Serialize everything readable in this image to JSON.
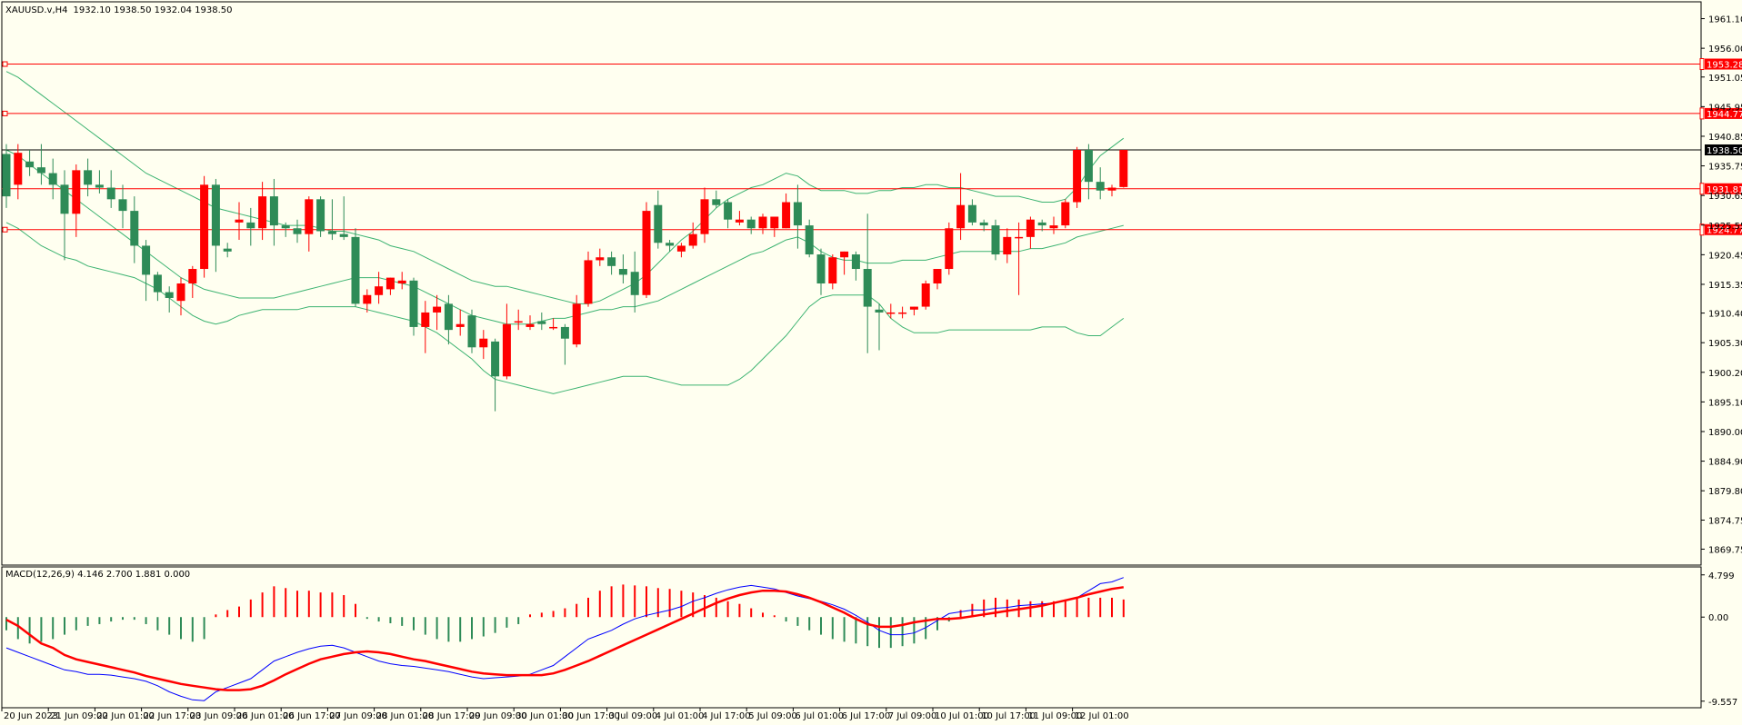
{
  "header": {
    "symbol": "XAUUSD.v,H4",
    "ohlc": "1932.10 1938.50 1932.04 1938.50"
  },
  "macd_header": {
    "label": "MACD(12,26,9) 4.146 2.700 1.881 0.000"
  },
  "colors": {
    "background": "#FFFFF0",
    "bull": "#2E8B57",
    "bear": "#FF0000",
    "bands": "#3CB371",
    "levels": "#FF0000",
    "current_line": "#000000",
    "macd_main": "#0000FF",
    "macd_signal": "#FF0000"
  },
  "chart_data": [
    {
      "type": "candlestick",
      "title": "",
      "ylim": [
        1867,
        1964
      ],
      "y_ticks": [
        "1961.10",
        "1956.00",
        "1951.05",
        "1945.95",
        "1940.85",
        "1935.75",
        "1930.65",
        "1925.55",
        "1920.45",
        "1915.35",
        "1910.40",
        "1905.30",
        "1900.20",
        "1895.10",
        "1890.00",
        "1884.90",
        "1879.80",
        "1874.75",
        "1869.75"
      ],
      "x_ticks": [
        "20 Jun 2023",
        "21 Jun 09:00",
        "22 Jun 01:00",
        "22 Jun 17:00",
        "23 Jun 09:00",
        "26 Jun 01:00",
        "26 Jun 17:00",
        "27 Jun 09:00",
        "28 Jun 01:00",
        "28 Jun 17:00",
        "29 Jun 09:00",
        "30 Jun 01:00",
        "30 Jun 17:00",
        "3 Jul 09:00",
        "4 Jul 01:00",
        "4 Jul 17:00",
        "5 Jul 09:00",
        "6 Jul 01:00",
        "6 Jul 17:00",
        "7 Jul 09:00",
        "10 Jul 01:00",
        "10 Jul 17:00",
        "11 Jul 09:00",
        "12 Jul 01:00"
      ],
      "candles": [
        [
          1937.8,
          1939.5,
          1928.5,
          1930.5
        ],
        [
          1932.5,
          1939.5,
          1930.0,
          1938.0
        ],
        [
          1936.5,
          1938.5,
          1934.0,
          1935.5
        ],
        [
          1935.5,
          1939.5,
          1932.5,
          1934.5
        ],
        [
          1934.5,
          1937.0,
          1930.0,
          1932.5
        ],
        [
          1932.5,
          1935.0,
          1919.5,
          1927.5
        ],
        [
          1927.5,
          1936.0,
          1923.5,
          1935.0
        ],
        [
          1935.0,
          1937.0,
          1930.5,
          1932.5
        ],
        [
          1932.5,
          1935.0,
          1931.0,
          1932.0
        ],
        [
          1932.0,
          1935.0,
          1928.5,
          1930.0
        ],
        [
          1930.0,
          1932.5,
          1925.0,
          1928.0
        ],
        [
          1928.0,
          1930.5,
          1919.0,
          1922.0
        ],
        [
          1922.0,
          1923.0,
          1912.5,
          1917.0
        ],
        [
          1917.0,
          1917.5,
          1912.5,
          1914.0
        ],
        [
          1914.0,
          1915.0,
          1910.5,
          1913.0
        ],
        [
          1912.5,
          1916.5,
          1910.0,
          1915.5
        ],
        [
          1915.5,
          1918.5,
          1913.0,
          1918.0
        ],
        [
          1918.0,
          1934.0,
          1916.5,
          1932.5
        ],
        [
          1932.5,
          1933.5,
          1917.5,
          1922.0
        ],
        [
          1921.5,
          1922.5,
          1920.0,
          1921.0
        ],
        [
          1926.0,
          1929.5,
          1923.0,
          1926.5
        ],
        [
          1926.0,
          1928.5,
          1922.0,
          1925.0
        ],
        [
          1925.0,
          1933.0,
          1923.0,
          1930.5
        ],
        [
          1930.5,
          1933.5,
          1922.0,
          1925.5
        ],
        [
          1925.5,
          1926.0,
          1923.5,
          1925.0
        ],
        [
          1925.0,
          1926.5,
          1922.5,
          1924.0
        ],
        [
          1924.0,
          1930.5,
          1921.0,
          1930.0
        ],
        [
          1930.0,
          1930.5,
          1923.5,
          1924.5
        ],
        [
          1924.5,
          1930.0,
          1923.0,
          1924.0
        ],
        [
          1924.0,
          1930.5,
          1923.0,
          1923.5
        ],
        [
          1923.5,
          1925.0,
          1911.5,
          1912.0
        ],
        [
          1912.0,
          1914.5,
          1910.5,
          1913.5
        ],
        [
          1913.5,
          1917.5,
          1912.0,
          1915.0
        ],
        [
          1914.5,
          1916.5,
          1913.5,
          1916.5
        ],
        [
          1915.5,
          1917.5,
          1914.5,
          1916.0
        ],
        [
          1916.0,
          1916.5,
          1906.5,
          1908.0
        ],
        [
          1908.0,
          1912.5,
          1903.5,
          1910.5
        ],
        [
          1910.5,
          1913.5,
          1907.5,
          1911.5
        ],
        [
          1912.0,
          1913.5,
          1905.0,
          1907.5
        ],
        [
          1908.0,
          1911.0,
          1906.5,
          1908.5
        ],
        [
          1910.0,
          1911.0,
          1903.5,
          1904.5
        ],
        [
          1904.5,
          1907.5,
          1902.5,
          1906.0
        ],
        [
          1905.5,
          1906.0,
          1893.5,
          1899.5
        ],
        [
          1899.5,
          1912.0,
          1899.0,
          1908.5
        ],
        [
          1909.0,
          1911.0,
          1907.5,
          1909.0
        ],
        [
          1908.0,
          1910.0,
          1907.5,
          1908.5
        ],
        [
          1909.0,
          1910.5,
          1907.5,
          1908.5
        ],
        [
          1908.0,
          1909.5,
          1907.5,
          1908.0
        ],
        [
          1908.0,
          1908.5,
          1901.5,
          1906.0
        ],
        [
          1905.0,
          1913.5,
          1904.5,
          1912.0
        ],
        [
          1912.0,
          1921.0,
          1911.5,
          1919.5
        ],
        [
          1919.5,
          1921.5,
          1918.5,
          1920.0
        ],
        [
          1920.0,
          1921.0,
          1917.0,
          1918.5
        ],
        [
          1918.0,
          1920.5,
          1915.5,
          1917.0
        ],
        [
          1917.5,
          1921.0,
          1910.5,
          1913.5
        ],
        [
          1913.5,
          1929.5,
          1913.0,
          1928.0
        ],
        [
          1929.0,
          1931.5,
          1921.5,
          1922.5
        ],
        [
          1922.5,
          1923.0,
          1921.0,
          1922.0
        ],
        [
          1921.0,
          1922.5,
          1920.0,
          1922.0
        ],
        [
          1922.0,
          1926.0,
          1921.5,
          1924.0
        ],
        [
          1924.0,
          1932.0,
          1922.5,
          1930.0
        ],
        [
          1930.0,
          1931.5,
          1928.5,
          1929.0
        ],
        [
          1929.5,
          1930.0,
          1925.0,
          1926.5
        ],
        [
          1926.0,
          1928.0,
          1925.5,
          1926.5
        ],
        [
          1926.5,
          1927.0,
          1924.0,
          1925.0
        ],
        [
          1925.0,
          1927.5,
          1924.0,
          1927.0
        ],
        [
          1925.0,
          1927.0,
          1923.5,
          1927.0
        ],
        [
          1925.0,
          1931.0,
          1925.0,
          1929.5
        ],
        [
          1929.5,
          1932.5,
          1921.5,
          1925.5
        ],
        [
          1925.5,
          1926.5,
          1920.0,
          1920.5
        ],
        [
          1920.5,
          1921.5,
          1913.5,
          1915.5
        ],
        [
          1915.5,
          1920.5,
          1914.5,
          1920.0
        ],
        [
          1920.0,
          1921.0,
          1917.0,
          1921.0
        ],
        [
          1920.5,
          1921.0,
          1916.0,
          1918.0
        ],
        [
          1918.0,
          1927.5,
          1903.5,
          1911.5
        ],
        [
          1911.0,
          1912.0,
          1904.0,
          1910.5
        ],
        [
          1910.5,
          1912.0,
          1909.5,
          1910.5
        ],
        [
          1910.5,
          1911.5,
          1909.5,
          1910.5
        ],
        [
          1911.0,
          1911.5,
          1910.0,
          1911.5
        ],
        [
          1911.5,
          1916.0,
          1911.0,
          1915.5
        ],
        [
          1915.5,
          1918.0,
          1914.5,
          1918.0
        ],
        [
          1918.0,
          1926.0,
          1917.0,
          1925.0
        ],
        [
          1925.0,
          1934.5,
          1923.0,
          1929.0
        ],
        [
          1929.0,
          1930.0,
          1925.5,
          1926.0
        ],
        [
          1926.0,
          1926.5,
          1924.5,
          1925.5
        ],
        [
          1925.5,
          1926.5,
          1919.5,
          1920.5
        ],
        [
          1920.5,
          1925.0,
          1919.0,
          1923.5
        ],
        [
          1923.5,
          1926.0,
          1913.5,
          1923.5
        ],
        [
          1923.5,
          1927.0,
          1921.5,
          1926.5
        ],
        [
          1926.0,
          1926.5,
          1924.5,
          1925.5
        ],
        [
          1925.0,
          1927.0,
          1924.0,
          1925.5
        ],
        [
          1925.5,
          1930.0,
          1925.0,
          1929.5
        ],
        [
          1929.5,
          1939.0,
          1928.5,
          1938.5
        ],
        [
          1938.5,
          1939.5,
          1930.0,
          1933.0
        ],
        [
          1933.0,
          1935.5,
          1930.0,
          1931.5
        ],
        [
          1931.5,
          1932.5,
          1930.5,
          1932.0
        ],
        [
          1932.1,
          1938.5,
          1932.0,
          1938.5
        ]
      ],
      "bollinger_upper": [
        1952.0,
        1951.0,
        1949.5,
        1948.0,
        1946.5,
        1945.0,
        1943.5,
        1942.0,
        1940.5,
        1939.0,
        1937.5,
        1936.0,
        1934.5,
        1933.5,
        1932.5,
        1931.5,
        1930.5,
        1929.5,
        1928.5,
        1928.0,
        1927.5,
        1927.0,
        1926.5,
        1926.0,
        1925.5,
        1925.5,
        1925.5,
        1925.0,
        1924.5,
        1924.5,
        1924.0,
        1923.5,
        1923.0,
        1922.0,
        1921.5,
        1921.0,
        1920.0,
        1919.0,
        1918.0,
        1917.0,
        1916.0,
        1915.5,
        1915.0,
        1915.0,
        1914.5,
        1914.0,
        1913.5,
        1913.0,
        1912.5,
        1912.0,
        1912.0,
        1912.5,
        1913.5,
        1914.5,
        1915.5,
        1917.0,
        1919.0,
        1921.0,
        1923.0,
        1924.5,
        1926.5,
        1928.5,
        1930.0,
        1931.0,
        1932.0,
        1932.5,
        1933.5,
        1934.5,
        1934.0,
        1932.5,
        1931.5,
        1931.5,
        1931.5,
        1931.0,
        1931.0,
        1931.5,
        1931.5,
        1932.0,
        1932.0,
        1932.5,
        1932.5,
        1932.0,
        1932.0,
        1931.5,
        1931.0,
        1930.5,
        1930.5,
        1930.5,
        1930.0,
        1929.5,
        1929.5,
        1930.0,
        1932.0,
        1935.0,
        1937.5,
        1939.0,
        1940.5
      ],
      "bollinger_middle": [
        1938.5,
        1937.5,
        1936.0,
        1934.5,
        1933.0,
        1931.5,
        1930.0,
        1928.5,
        1927.0,
        1925.5,
        1924.0,
        1922.5,
        1921.0,
        1919.5,
        1918.0,
        1916.5,
        1915.5,
        1914.5,
        1914.0,
        1913.5,
        1913.0,
        1913.0,
        1913.0,
        1913.0,
        1913.5,
        1914.0,
        1914.5,
        1915.0,
        1915.5,
        1916.0,
        1916.5,
        1916.5,
        1916.5,
        1916.0,
        1915.5,
        1915.0,
        1914.0,
        1913.0,
        1912.0,
        1911.0,
        1910.0,
        1909.5,
        1909.0,
        1908.5,
        1908.5,
        1908.5,
        1909.0,
        1909.5,
        1909.5,
        1910.0,
        1910.5,
        1911.0,
        1911.0,
        1911.5,
        1911.5,
        1912.0,
        1912.5,
        1913.5,
        1914.5,
        1915.5,
        1916.5,
        1917.5,
        1918.5,
        1919.5,
        1920.5,
        1921.0,
        1922.0,
        1923.0,
        1923.5,
        1922.5,
        1921.0,
        1920.0,
        1919.5,
        1919.5,
        1919.0,
        1919.0,
        1919.0,
        1919.5,
        1919.5,
        1919.5,
        1920.0,
        1920.5,
        1921.0,
        1921.0,
        1921.0,
        1921.0,
        1921.0,
        1921.0,
        1921.5,
        1921.5,
        1922.0,
        1922.5,
        1923.5,
        1924.0,
        1924.5,
        1925.0,
        1925.5
      ],
      "bollinger_lower": [
        1926.0,
        1925.0,
        1923.5,
        1922.0,
        1921.0,
        1920.0,
        1919.5,
        1918.5,
        1918.0,
        1917.5,
        1917.0,
        1916.5,
        1915.5,
        1914.5,
        1913.0,
        1911.5,
        1910.0,
        1909.0,
        1908.5,
        1909.0,
        1910.0,
        1910.5,
        1911.0,
        1911.0,
        1911.0,
        1911.0,
        1911.5,
        1911.5,
        1911.5,
        1911.5,
        1911.5,
        1911.0,
        1910.5,
        1910.0,
        1909.5,
        1909.0,
        1908.0,
        1907.0,
        1905.5,
        1904.0,
        1902.5,
        1900.5,
        1899.0,
        1898.5,
        1898.0,
        1897.5,
        1897.0,
        1896.5,
        1897.0,
        1897.5,
        1898.0,
        1898.5,
        1899.0,
        1899.5,
        1899.5,
        1899.5,
        1899.0,
        1898.5,
        1898.0,
        1898.0,
        1898.0,
        1898.0,
        1898.0,
        1899.0,
        1900.5,
        1902.5,
        1904.5,
        1906.5,
        1909.0,
        1911.5,
        1913.0,
        1913.5,
        1913.5,
        1913.5,
        1913.5,
        1912.0,
        1909.5,
        1908.0,
        1907.0,
        1907.0,
        1907.0,
        1907.5,
        1907.5,
        1907.5,
        1907.5,
        1907.5,
        1907.5,
        1907.5,
        1907.5,
        1908.0,
        1908.0,
        1908.0,
        1907.0,
        1906.5,
        1906.5,
        1908.0,
        1909.5
      ],
      "horizontal_levels": [
        {
          "value": 1953.28,
          "label": "1953.28"
        },
        {
          "value": 1944.77,
          "label": "1944.77"
        },
        {
          "value": 1931.81,
          "label": "1931.81"
        },
        {
          "value": 1924.77,
          "label": "1924.77"
        }
      ],
      "current_price": {
        "value": 1938.5,
        "label": "1938.50"
      }
    },
    {
      "type": "macd",
      "title": "",
      "ylim": [
        -10.2,
        5.6
      ],
      "y_ticks": [
        {
          "value": 4.799,
          "label": "4.799"
        },
        {
          "value": 0.0,
          "label": "0.00"
        },
        {
          "value": -9.557,
          "label": "-9.557"
        }
      ],
      "histogram": [
        -1.5,
        -2.5,
        -3,
        -2.8,
        -2.5,
        -2,
        -1.5,
        -1,
        -0.8,
        -0.5,
        -0.3,
        -0.3,
        -0.8,
        -1.5,
        -2,
        -2.5,
        -2.8,
        -2.5,
        0.3,
        0.8,
        1.2,
        2,
        2.8,
        3.5,
        3.3,
        3,
        3,
        2.8,
        2.8,
        2.5,
        1.5,
        -0.2,
        -0.5,
        -0.7,
        -1,
        -1.5,
        -2,
        -2.5,
        -2.8,
        -2.8,
        -2.5,
        -2.2,
        -1.8,
        -1.2,
        -0.8,
        0.3,
        0.5,
        0.7,
        1,
        1.5,
        2.2,
        3,
        3.5,
        3.7,
        3.6,
        3.5,
        3.3,
        3.2,
        3,
        2.8,
        2.5,
        2.2,
        1.8,
        1.5,
        1,
        0.5,
        0.2,
        -0.5,
        -1,
        -1.5,
        -2,
        -2.5,
        -2.8,
        -3,
        -3.3,
        -3.5,
        -3.5,
        -3.3,
        -3,
        -2.5,
        -1.5,
        -0.5,
        0.8,
        1.5,
        2,
        2.2,
        2,
        2,
        1.8,
        1.8,
        1.8,
        2,
        2.2,
        2.2,
        2.2,
        2.2,
        2
      ],
      "main": [
        -3.5,
        -4,
        -4.5,
        -5,
        -5.5,
        -6,
        -6.2,
        -6.5,
        -6.5,
        -6.6,
        -6.8,
        -7,
        -7.3,
        -7.8,
        -8.5,
        -9,
        -9.4,
        -9.5,
        -8.5,
        -8,
        -7.5,
        -7,
        -6,
        -5,
        -4.5,
        -4,
        -3.6,
        -3.3,
        -3.2,
        -3.5,
        -4,
        -4.5,
        -5,
        -5.3,
        -5.5,
        -5.6,
        -5.8,
        -6,
        -6.2,
        -6.5,
        -6.8,
        -7,
        -6.9,
        -6.8,
        -6.7,
        -6.5,
        -6,
        -5.5,
        -4.5,
        -3.5,
        -2.5,
        -2,
        -1.5,
        -0.8,
        -0.2,
        0.2,
        0.5,
        0.8,
        1.2,
        1.8,
        2.2,
        2.7,
        3.1,
        3.4,
        3.6,
        3.4,
        3.2,
        2.8,
        2.4,
        2.1,
        1.8,
        1.4,
        0.9,
        0.2,
        -0.6,
        -1.5,
        -2,
        -2,
        -1.8,
        -1.2,
        -0.4,
        0.4,
        0.6,
        0.8,
        0.8,
        1.0,
        1.1,
        1.3,
        1.4,
        1.5,
        1.6,
        1.9,
        2.2,
        3.0,
        3.8,
        4.0,
        4.5
      ],
      "signal": [
        -0.3,
        -1,
        -2,
        -3,
        -3.5,
        -4.3,
        -4.8,
        -5.1,
        -5.4,
        -5.7,
        -6,
        -6.3,
        -6.7,
        -7,
        -7.3,
        -7.6,
        -7.8,
        -8,
        -8.2,
        -8.3,
        -8.3,
        -8.2,
        -7.8,
        -7.2,
        -6.5,
        -5.9,
        -5.3,
        -4.8,
        -4.5,
        -4.2,
        -4,
        -3.9,
        -4,
        -4.2,
        -4.5,
        -4.8,
        -5,
        -5.3,
        -5.6,
        -5.9,
        -6.2,
        -6.4,
        -6.5,
        -6.6,
        -6.6,
        -6.6,
        -6.6,
        -6.4,
        -6,
        -5.5,
        -5,
        -4.4,
        -3.8,
        -3.2,
        -2.6,
        -2,
        -1.4,
        -0.8,
        -0.2,
        0.4,
        1,
        1.6,
        2.1,
        2.5,
        2.8,
        3.0,
        3.0,
        2.9,
        2.6,
        2.2,
        1.7,
        1.1,
        0.5,
        -0.2,
        -0.8,
        -1.1,
        -1.1,
        -0.9,
        -0.6,
        -0.4,
        -0.2,
        -0.2,
        -0.1,
        0.1,
        0.3,
        0.5,
        0.7,
        0.9,
        1.1,
        1.3,
        1.6,
        1.9,
        2.2,
        2.6,
        2.9,
        3.2,
        3.4
      ]
    }
  ]
}
